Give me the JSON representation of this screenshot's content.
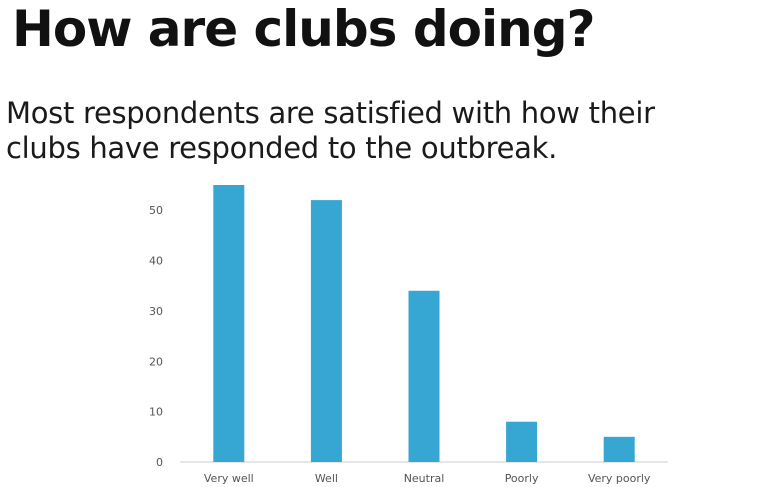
{
  "header": {
    "title": "How are clubs doing?",
    "subtitle_line1": "Most respondents are satisfied with how their",
    "subtitle_line2": "clubs have responded to the outbreak."
  },
  "colors": {
    "bar": "#36a6d2",
    "axis": "#cccccc",
    "tick_text": "#555555"
  },
  "chart_data": {
    "type": "bar",
    "categories": [
      "Very well",
      "Well",
      "Neutral",
      "Poorly",
      "Very poorly"
    ],
    "values": [
      55,
      52,
      34,
      8,
      5
    ],
    "yticks": [
      0,
      10,
      20,
      30,
      40,
      50
    ],
    "ylim": [
      0,
      55
    ],
    "title": "",
    "xlabel": "",
    "ylabel": "",
    "grid": false,
    "legend": "none"
  }
}
